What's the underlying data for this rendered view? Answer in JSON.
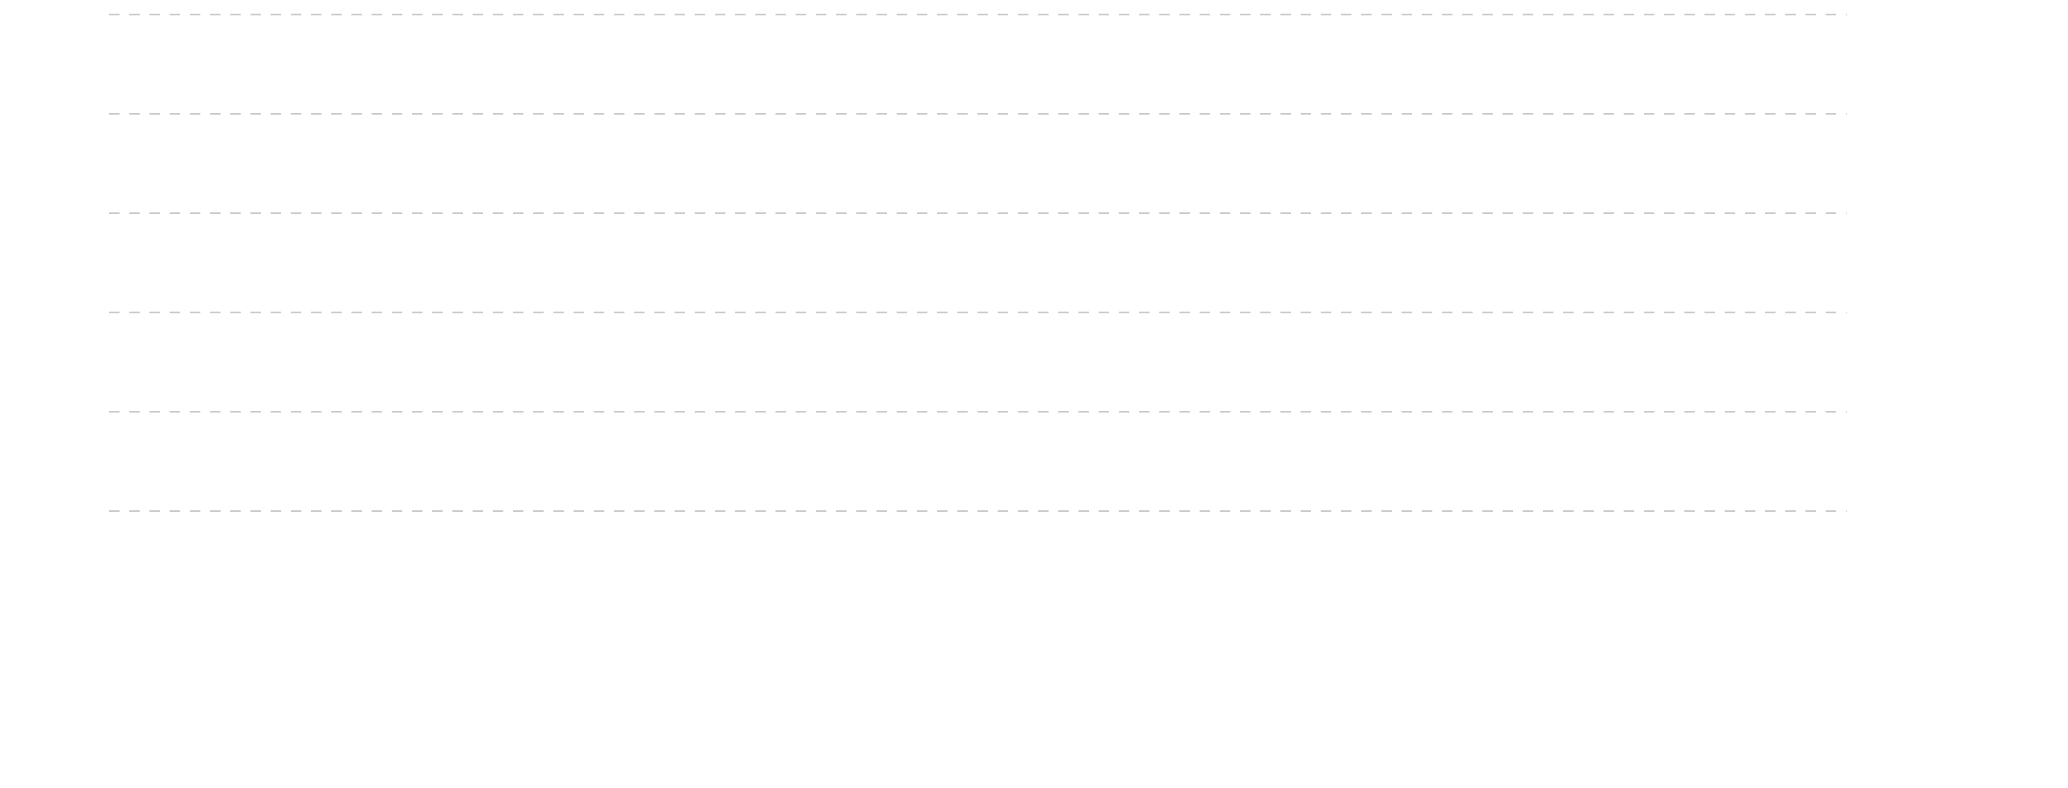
{
  "chart_data": {
    "type": "line",
    "ylim": [
      0,
      5
    ],
    "yticks": [
      0,
      1,
      2,
      3,
      4,
      5
    ],
    "grid": true,
    "grid_color": "#c8c8c8",
    "grid_style": "dashed",
    "tick_labels": false
  }
}
